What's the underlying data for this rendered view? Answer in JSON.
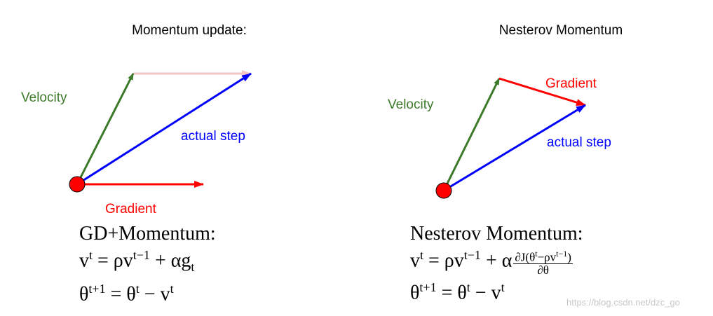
{
  "left": {
    "title": "Momentum update:",
    "velocity": "Velocity",
    "actual_step": "actual step",
    "gradient": "Gradient",
    "formula_title": "GD+Momentum:",
    "formula_lines": [
      [
        {
          "text": "v"
        },
        {
          "sup": "t"
        },
        {
          "text": " = ρv"
        },
        {
          "sup": "t−1"
        },
        {
          "text": " + αg"
        },
        {
          "sub": "t"
        }
      ],
      [
        {
          "text": "θ"
        },
        {
          "sup": "t+1"
        },
        {
          "text": " = θ"
        },
        {
          "sup": "t"
        },
        {
          "text": " − v"
        },
        {
          "sup": "t"
        }
      ]
    ]
  },
  "right": {
    "title": "Nesterov Momentum",
    "velocity": "Velocity",
    "actual_step": "actual step",
    "gradient": "Gradient",
    "formula_title": "Nesterov Momentum:",
    "formula_lines": [
      [
        {
          "text": "v"
        },
        {
          "sup": "t"
        },
        {
          "text": " = ρv"
        },
        {
          "sup": "t−1"
        },
        {
          "text": " + α"
        },
        {
          "frac": {
            "num": [
              {
                "text": "∂J(θ"
              },
              {
                "sup": "t"
              },
              {
                "text": "−ρv"
              },
              {
                "sup": "t−1"
              },
              {
                "text": ")"
              }
            ],
            "den": [
              {
                "text": "∂θ"
              }
            ]
          }
        }
      ],
      [
        {
          "text": "θ"
        },
        {
          "sup": "t+1"
        },
        {
          "text": " = θ"
        },
        {
          "sup": "t"
        },
        {
          "text": " − v"
        },
        {
          "sup": "t"
        }
      ]
    ]
  },
  "watermark": "https://blog.csdn.net/dzc_go"
}
